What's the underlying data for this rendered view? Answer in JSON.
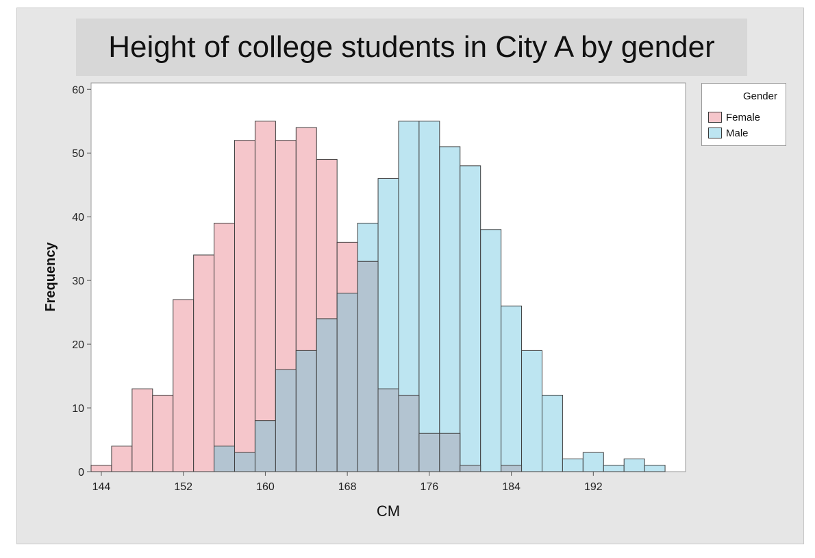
{
  "chart_data": {
    "type": "bar",
    "title": "Height of college students in City A by gender",
    "xlabel": "CM",
    "ylabel": "Frequency",
    "bin_width": 2,
    "xlim": [
      143,
      201
    ],
    "ylim": [
      0,
      61
    ],
    "xticks": [
      144,
      152,
      160,
      168,
      176,
      184,
      192
    ],
    "yticks": [
      0,
      10,
      20,
      30,
      40,
      50,
      60
    ],
    "legend": {
      "title": "Gender",
      "position": "right"
    },
    "series": [
      {
        "name": "Female",
        "color": "#f5c6cb",
        "bins": [
          [
            144,
            1
          ],
          [
            146,
            4
          ],
          [
            148,
            13
          ],
          [
            150,
            12
          ],
          [
            152,
            27
          ],
          [
            154,
            34
          ],
          [
            156,
            39
          ],
          [
            158,
            52
          ],
          [
            160,
            55
          ],
          [
            162,
            52
          ],
          [
            164,
            54
          ],
          [
            166,
            49
          ],
          [
            168,
            36
          ],
          [
            170,
            33
          ],
          [
            172,
            13
          ],
          [
            174,
            12
          ],
          [
            176,
            6
          ],
          [
            178,
            6
          ],
          [
            180,
            1
          ],
          [
            182,
            0
          ],
          [
            184,
            1
          ]
        ]
      },
      {
        "name": "Male",
        "color": "#bde5f1",
        "bins": [
          [
            156,
            4
          ],
          [
            158,
            3
          ],
          [
            160,
            8
          ],
          [
            162,
            16
          ],
          [
            164,
            19
          ],
          [
            166,
            24
          ],
          [
            168,
            28
          ],
          [
            170,
            39
          ],
          [
            172,
            46
          ],
          [
            174,
            55
          ],
          [
            176,
            55
          ],
          [
            178,
            51
          ],
          [
            180,
            48
          ],
          [
            182,
            38
          ],
          [
            184,
            26
          ],
          [
            186,
            19
          ],
          [
            188,
            12
          ],
          [
            190,
            2
          ],
          [
            192,
            3
          ],
          [
            194,
            1
          ],
          [
            196,
            2
          ],
          [
            198,
            1
          ]
        ]
      }
    ],
    "overlap_color": "#b3c4d1",
    "grid": false
  }
}
